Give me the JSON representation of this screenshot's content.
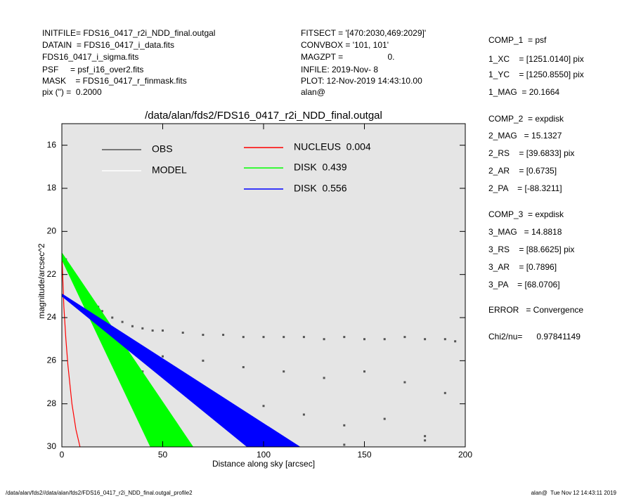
{
  "header": {
    "left": [
      "INITFILE= FDS16_0417_r2i_NDD_final.outgal",
      "DATAIN  = FDS16_0417_i_data.fits",
      "FDS16_0417_i_sigma.fits",
      "PSF     = psf_i16_over2.fits",
      "MASK    = FDS16_0417_r_finmask.fits",
      "pix (\") =  0.2000"
    ],
    "middle": [
      "FITSECT = '[470:2030,469:2029]'",
      "CONVBOX = '101, 101'",
      "MAGZPT =                   0.",
      "INFILE: 2019-Nov- 8",
      "PLOT: 12-Nov-2019 14:43:10.00",
      "alan@"
    ],
    "right": [
      "COMP_1  = psf",
      "1_XC    = [1251.0140] pix",
      "1_YC    = [1250.8550] pix",
      "1_MAG  = 20.1664",
      "COMP_2  = expdisk",
      "2_MAG   = 15.1327",
      "2_RS    = [39.6833] pix",
      "2_AR    = [0.6735]",
      "2_PA    = [-88.3211]",
      "COMP_3  = expdisk",
      "3_MAG   = 14.8818",
      "3_RS    = [88.6625] pix",
      "3_AR    = [0.7896]",
      "3_PA    = [68.0706]",
      "ERROR   = Convergence",
      "Chi2/nu=      0.97841149"
    ]
  },
  "footer": {
    "left": "/data/alan/fds2//data/alan/fds2/FDS16_0417_r2i_NDD_final.outgal_profile2",
    "right": "alan@  Tue Nov 12 14:43:11 2019"
  },
  "chart_data": {
    "type": "scatter",
    "title": "/data/alan/fds2/FDS16_0417_r2i_NDD_final.outgal",
    "xlabel": "Distance along sky [arcsec]",
    "ylabel": "magnitude/arcsec^2",
    "xlim": [
      0,
      200
    ],
    "ylim": [
      30,
      15
    ],
    "xticks": [
      0,
      50,
      100,
      150,
      200
    ],
    "yticks": [
      16,
      18,
      20,
      22,
      24,
      26,
      28,
      30
    ],
    "model_label": "MODEL",
    "model_color": "#ffffff",
    "series": [
      {
        "name": "OBS",
        "color": "#555555",
        "kind": "points",
        "x": [
          2,
          5,
          8,
          10,
          12,
          15,
          18,
          20,
          25,
          30,
          35,
          40,
          45,
          50,
          60,
          70,
          80,
          90,
          100,
          110,
          120,
          130,
          140,
          150,
          160,
          170,
          180,
          190,
          195,
          30,
          50,
          70,
          90,
          110,
          130,
          150,
          170,
          190,
          40,
          60,
          80,
          100,
          120,
          140,
          160,
          180,
          60,
          100,
          140,
          180
        ],
        "values": [
          21.3,
          21.8,
          22.3,
          22.6,
          22.9,
          23.2,
          23.5,
          23.7,
          24.0,
          24.2,
          24.4,
          24.5,
          24.6,
          24.6,
          24.7,
          24.8,
          24.8,
          24.9,
          24.9,
          24.9,
          24.9,
          25.0,
          24.9,
          25.0,
          25.0,
          24.9,
          25.0,
          25.0,
          25.1,
          25.2,
          25.8,
          26.0,
          26.3,
          26.5,
          26.8,
          26.5,
          27.0,
          27.5,
          26.5,
          27.2,
          27.8,
          28.1,
          28.5,
          29.0,
          28.7,
          29.5,
          29.6,
          29.8,
          29.9,
          29.7
        ]
      },
      {
        "name": "NUCLEUS  0.004",
        "color": "#ff0000",
        "kind": "line",
        "x": [
          0,
          1,
          2,
          3,
          5,
          7,
          9
        ],
        "values": [
          21,
          23.5,
          25,
          26.2,
          28,
          29.2,
          30
        ]
      },
      {
        "name": "DISK  0.439",
        "color": "#00ff00",
        "kind": "band",
        "x": [
          0,
          65
        ],
        "values": [
          21,
          30
        ],
        "x2": [
          0,
          44
        ],
        "values2": [
          21.3,
          30
        ]
      },
      {
        "name": "DISK  0.556",
        "color": "#0000ff",
        "kind": "band",
        "x": [
          0,
          118
        ],
        "values": [
          22.9,
          30
        ],
        "x2": [
          0,
          92
        ],
        "values2": [
          23.0,
          30
        ]
      }
    ]
  }
}
